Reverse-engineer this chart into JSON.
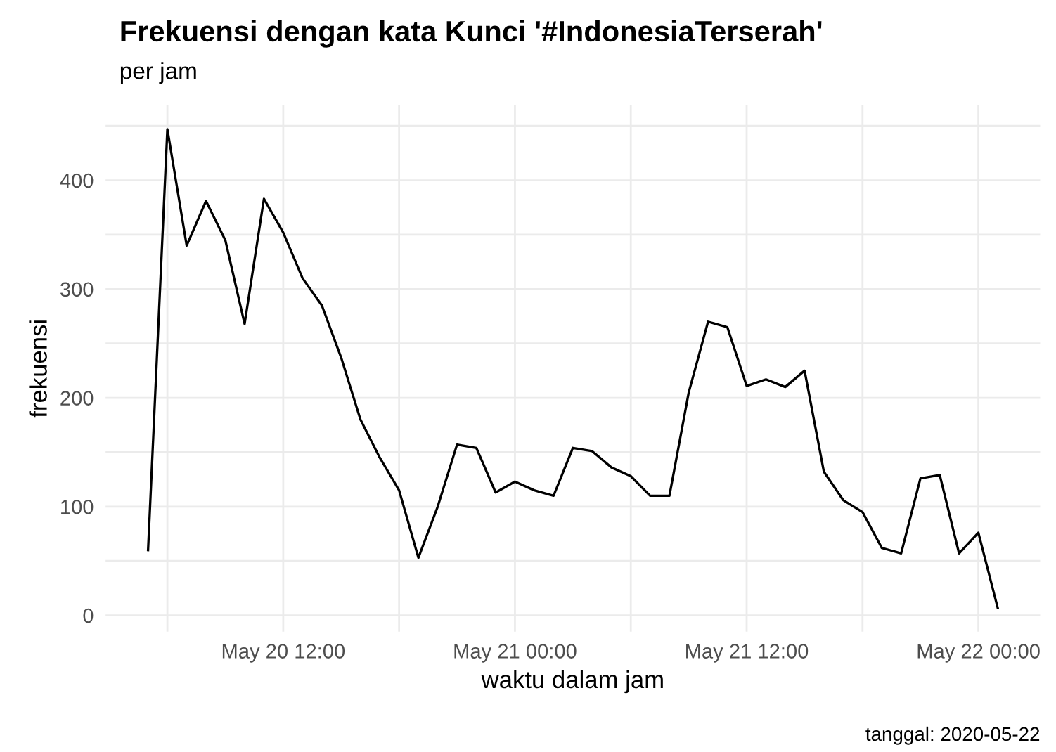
{
  "chart_data": {
    "type": "line",
    "title": "Frekuensi dengan kata Kunci '#IndonesiaTerserah'",
    "subtitle": "per jam",
    "xlabel": "waktu dalam jam",
    "ylabel": "frekuensi",
    "annotations": [
      "tanggal: 2020-05-22"
    ],
    "x": [
      "2020-05-20T05:00",
      "2020-05-20T06:00",
      "2020-05-20T07:00",
      "2020-05-20T08:00",
      "2020-05-20T09:00",
      "2020-05-20T10:00",
      "2020-05-20T11:00",
      "2020-05-20T12:00",
      "2020-05-20T13:00",
      "2020-05-20T14:00",
      "2020-05-20T15:00",
      "2020-05-20T16:00",
      "2020-05-20T17:00",
      "2020-05-20T18:00",
      "2020-05-20T19:00",
      "2020-05-20T20:00",
      "2020-05-20T21:00",
      "2020-05-20T22:00",
      "2020-05-20T23:00",
      "2020-05-21T00:00",
      "2020-05-21T01:00",
      "2020-05-21T02:00",
      "2020-05-21T03:00",
      "2020-05-21T04:00",
      "2020-05-21T05:00",
      "2020-05-21T06:00",
      "2020-05-21T07:00",
      "2020-05-21T08:00",
      "2020-05-21T09:00",
      "2020-05-21T10:00",
      "2020-05-21T11:00",
      "2020-05-21T12:00",
      "2020-05-21T13:00",
      "2020-05-21T14:00",
      "2020-05-21T15:00",
      "2020-05-21T16:00",
      "2020-05-21T17:00",
      "2020-05-21T18:00",
      "2020-05-21T19:00",
      "2020-05-21T20:00",
      "2020-05-21T21:00",
      "2020-05-21T22:00",
      "2020-05-21T23:00",
      "2020-05-22T00:00",
      "2020-05-22T01:00"
    ],
    "series": [
      {
        "color": "#000000",
        "values": [
          60,
          447,
          340,
          381,
          345,
          268,
          383,
          352,
          310,
          285,
          237,
          180,
          145,
          115,
          53,
          100,
          157,
          154,
          113,
          123,
          115,
          110,
          154,
          151,
          136,
          128,
          110,
          110,
          205,
          270,
          265,
          211,
          217,
          210,
          225,
          132,
          106,
          95,
          62,
          57,
          126,
          129,
          57,
          76,
          7
        ]
      }
    ],
    "xlim": [
      "2020-05-20T02:48",
      "2020-05-22T03:12"
    ],
    "xticks": [
      {
        "value": "2020-05-20T06:00",
        "label": null
      },
      {
        "value": "2020-05-20T12:00",
        "label": "May 20 12:00"
      },
      {
        "value": "2020-05-20T18:00",
        "label": null
      },
      {
        "value": "2020-05-21T00:00",
        "label": "May 21 00:00"
      },
      {
        "value": "2020-05-21T06:00",
        "label": null
      },
      {
        "value": "2020-05-21T12:00",
        "label": "May 21 12:00"
      },
      {
        "value": "2020-05-21T18:00",
        "label": null
      },
      {
        "value": "2020-05-22T00:00",
        "label": "May 22 00:00"
      }
    ],
    "ylim": [
      -15,
      469
    ],
    "yticks": [
      0,
      {
        "value": 50,
        "label": null
      },
      100,
      {
        "value": 150,
        "label": null
      },
      200,
      {
        "value": 250,
        "label": null
      },
      300,
      {
        "value": 350,
        "label": null
      },
      400,
      {
        "value": 450,
        "label": null
      }
    ],
    "grid": true,
    "marker": "none",
    "line_style": "solid"
  }
}
